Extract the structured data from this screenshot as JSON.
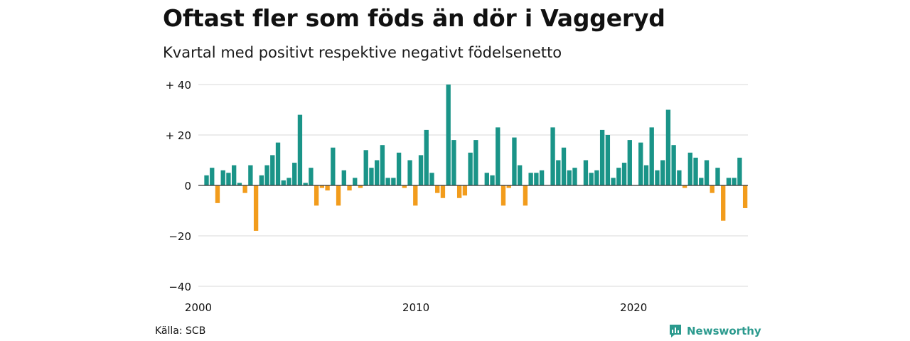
{
  "title": "Oftast fler som föds än dör i Vaggeryd",
  "subtitle": "Kvartal med positivt respektive negativt födelsenetto",
  "source": "Källa: SCB",
  "brand": {
    "name": "Newsworthy",
    "icon": "newsworthy-logo-icon",
    "color": "#2b9a8e"
  },
  "chart_data": {
    "type": "bar",
    "colors": {
      "positive": "#1a9488",
      "negative": "#f29c1c",
      "grid": "#d9d9d9",
      "zero_line": "#333333"
    },
    "ylim": [
      -40,
      40
    ],
    "y_ticks": [
      {
        "value": 40,
        "label": "+ 40"
      },
      {
        "value": 20,
        "label": "+ 20"
      },
      {
        "value": 0,
        "label": "0"
      },
      {
        "value": -20,
        "label": "−20"
      },
      {
        "value": -40,
        "label": "−40"
      }
    ],
    "x_ticks": [
      {
        "value": 2000,
        "label": "2000"
      },
      {
        "value": 2010,
        "label": "2010"
      },
      {
        "value": 2020,
        "label": "2020"
      }
    ],
    "x_start": 2000,
    "x_end": 2025.25,
    "quarter_start": 2000.25,
    "values": [
      4,
      7,
      -7,
      6,
      5,
      8,
      1,
      -3,
      8,
      -18,
      4,
      8,
      12,
      17,
      2,
      3,
      9,
      28,
      1,
      7,
      -8,
      -1,
      -2,
      15,
      -8,
      6,
      -2,
      3,
      -1,
      14,
      7,
      10,
      16,
      3,
      3,
      13,
      -1,
      10,
      -8,
      12,
      22,
      5,
      -3,
      -5,
      40,
      18,
      -5,
      -4,
      13,
      18,
      0,
      5,
      4,
      23,
      -8,
      -1,
      19,
      8,
      -8,
      5,
      5,
      6,
      0,
      23,
      10,
      15,
      6,
      7,
      0,
      10,
      5,
      6,
      22,
      20,
      3,
      7,
      9,
      18,
      0,
      17,
      8,
      23,
      6,
      10,
      30,
      16,
      6,
      -1,
      13,
      11,
      3,
      10,
      -3,
      7,
      -14,
      3,
      3,
      11,
      -9
    ]
  }
}
